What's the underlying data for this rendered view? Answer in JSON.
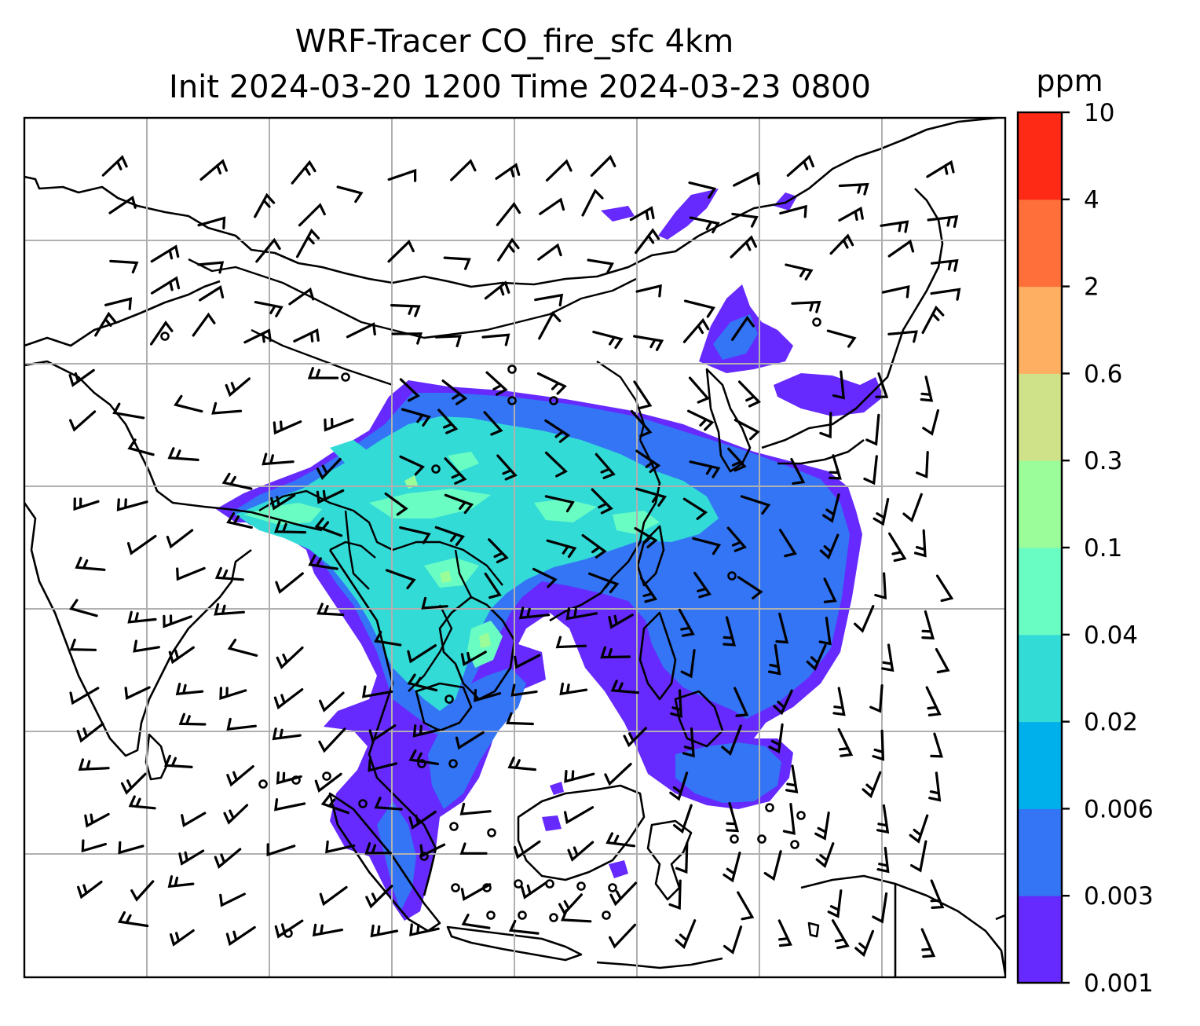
{
  "title": {
    "line1": "WRF-Tracer CO_fire_sfc 4km",
    "line2": "Init 2024-03-20 1200 Time 2024-03-23 0800"
  },
  "colorbar": {
    "unit": "ppm",
    "levels": [
      "0.001",
      "0.003",
      "0.006",
      "0.02",
      "0.04",
      "0.1",
      "0.3",
      "0.6",
      "2",
      "4",
      "10"
    ],
    "colors": [
      "#6629fe",
      "#3375f4",
      "#00b0eb",
      "#33dbd7",
      "#6afdc3",
      "#9afd9a",
      "#cfe189",
      "#ffaf61",
      "#ff6f3a",
      "#ff2a16"
    ]
  },
  "map": {
    "grid": true,
    "plume_colors": {
      "outer": "#6629fe",
      "mid": "#3375f4",
      "inner": "#33dbd7",
      "core": "#6afdc3",
      "peak": "#9afd9a"
    }
  }
}
